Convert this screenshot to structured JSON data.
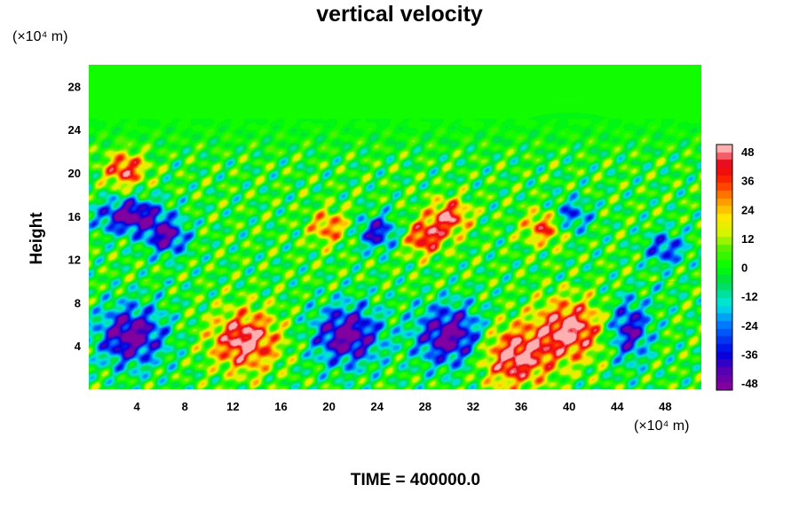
{
  "chart_data": {
    "type": "heatmap",
    "title": "vertical velocity",
    "ylabel": "Height",
    "y_unit": "(×10⁴ m)",
    "x_unit": "(×10⁴ m)",
    "footer": "TIME = 400000.0",
    "xlim": [
      0,
      51
    ],
    "ylim": [
      0,
      30
    ],
    "x_ticks": [
      "4",
      "8",
      "12",
      "16",
      "20",
      "24",
      "28",
      "32",
      "36",
      "40",
      "44",
      "48"
    ],
    "y_ticks": [
      "4",
      "8",
      "12",
      "16",
      "20",
      "24",
      "28"
    ],
    "colorbar": {
      "range": [
        -48,
        48
      ],
      "ticks": [
        "48",
        "36",
        "24",
        "12",
        "0",
        "-12",
        "-24",
        "-36",
        "-48"
      ]
    },
    "features": [
      {
        "x": 3.5,
        "y": 16,
        "value": -48
      },
      {
        "x": 6.5,
        "y": 14,
        "value": -40
      },
      {
        "x": 3.5,
        "y": 5,
        "value": -48
      },
      {
        "x": 13,
        "y": 4.5,
        "value": 48
      },
      {
        "x": 21.5,
        "y": 5,
        "value": -48
      },
      {
        "x": 30,
        "y": 5,
        "value": -48
      },
      {
        "x": 35.5,
        "y": 3,
        "value": 48
      },
      {
        "x": 40,
        "y": 5.5,
        "value": 48
      },
      {
        "x": 45,
        "y": 5.5,
        "value": -40
      },
      {
        "x": 30,
        "y": 16,
        "value": 40
      },
      {
        "x": 24,
        "y": 14.5,
        "value": -36
      },
      {
        "x": 28,
        "y": 14,
        "value": 40
      },
      {
        "x": 38,
        "y": 15,
        "value": 36
      },
      {
        "x": 40,
        "y": 16,
        "value": -30
      },
      {
        "x": 48,
        "y": 13,
        "value": -30
      },
      {
        "x": 20,
        "y": 15,
        "value": 30
      },
      {
        "x": 3,
        "y": 20.3,
        "value": 40
      }
    ]
  }
}
